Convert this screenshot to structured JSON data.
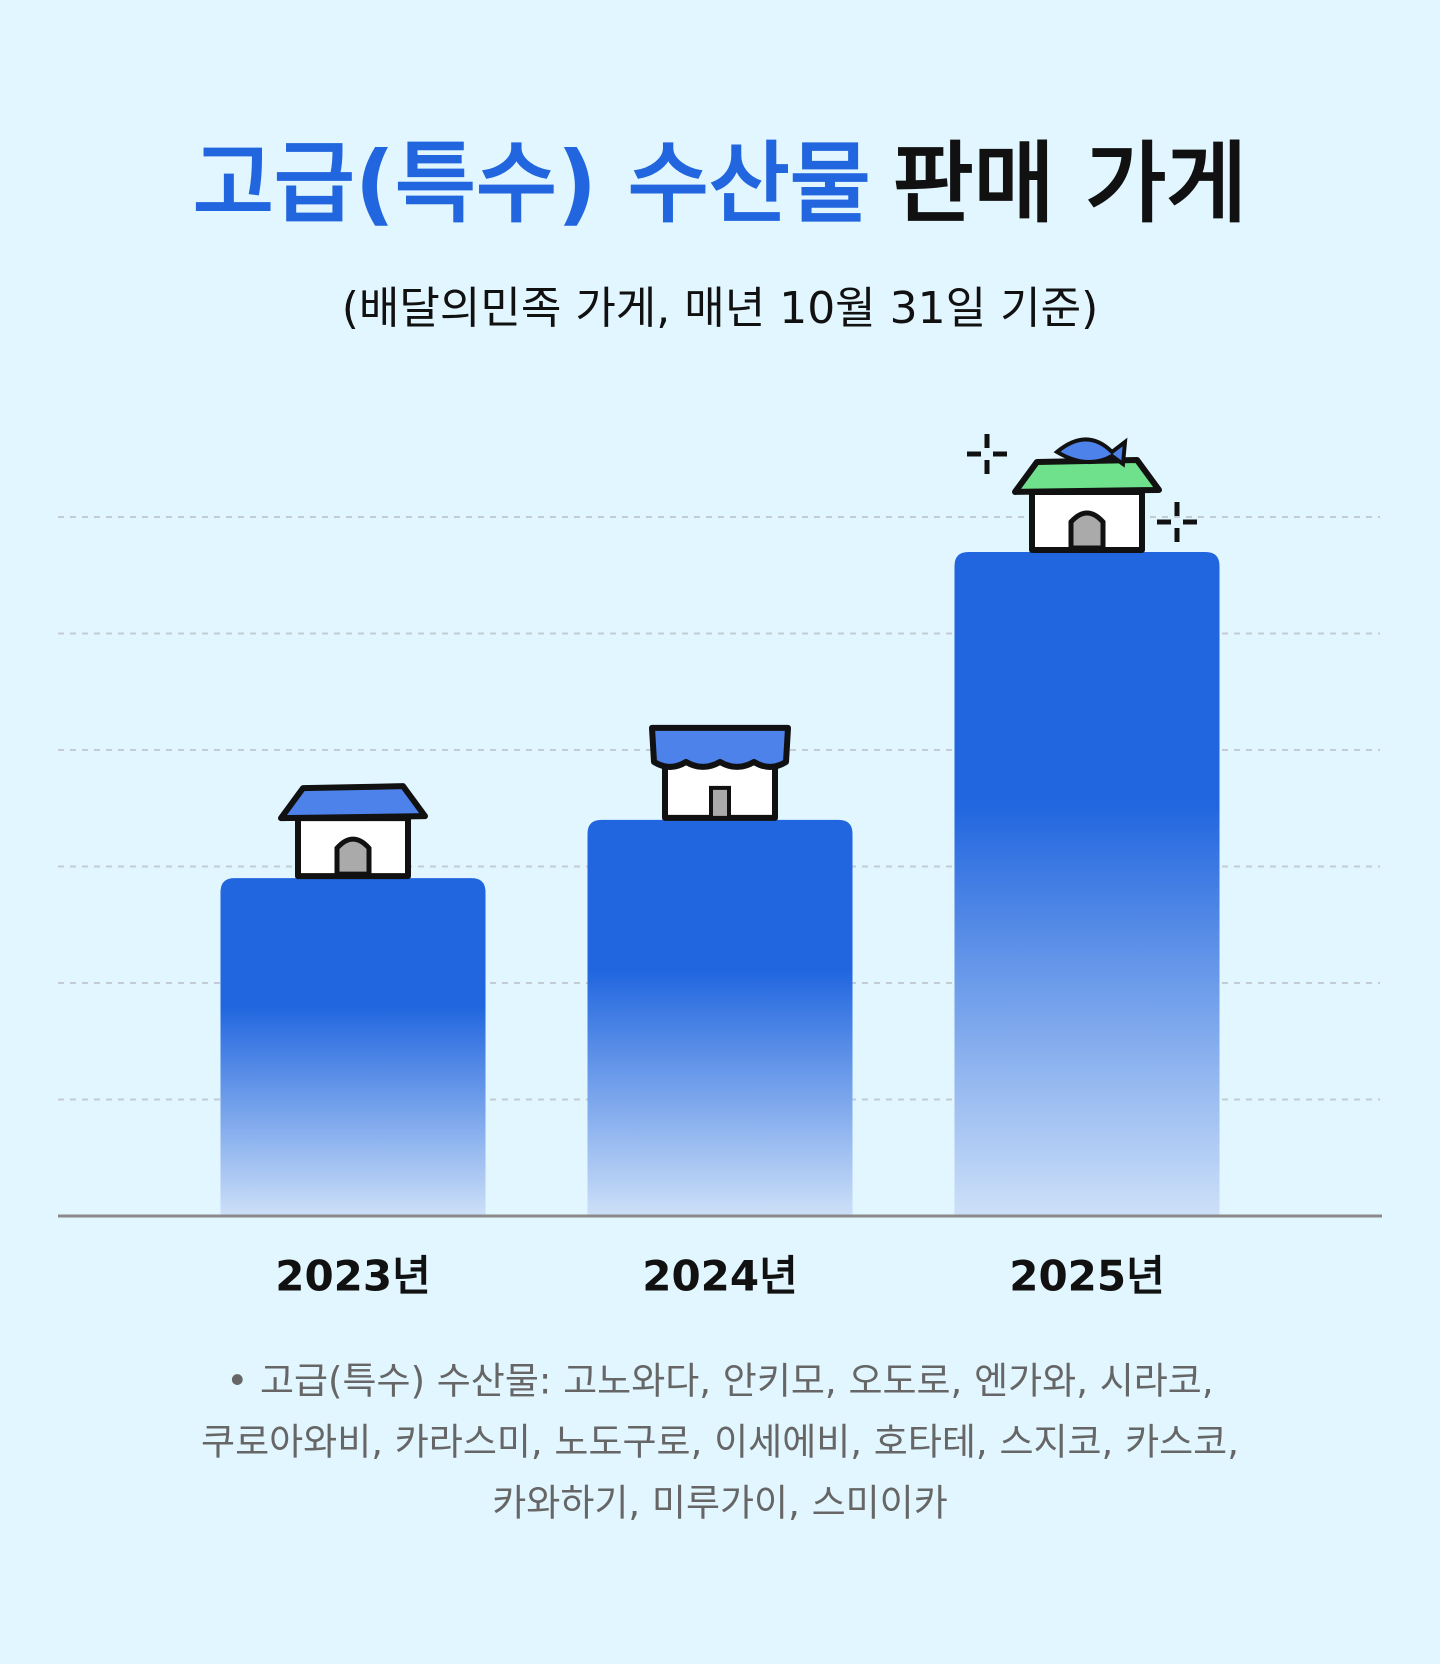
{
  "chart_data": {
    "type": "bar",
    "title": [
      {
        "text": "고급(특수) 수산물",
        "color": "#2166df"
      },
      {
        "text": "판매 가게",
        "color": "#111111"
      }
    ],
    "subtitle": "(배달의민족 가게, 매년 10월 31일 기준)",
    "categories": [
      "2023년",
      "2024년",
      "2025년"
    ],
    "values": [
      2.9,
      3.4,
      5.7
    ],
    "color": "#2166df",
    "ylim": [
      0,
      6
    ],
    "yticks": [
      1,
      2,
      3,
      4,
      5,
      6
    ],
    "grid": true,
    "note": [
      "• 고급(특수) 수산물: 고노와다, 안키모, 오도로, 엔가와, 시라코,",
      "쿠로아와비, 카라스미, 노도구로, 이세에비, 호타테, 스지코, 카스코,",
      "카와하기, 미루가이, 스미이카"
    ]
  }
}
